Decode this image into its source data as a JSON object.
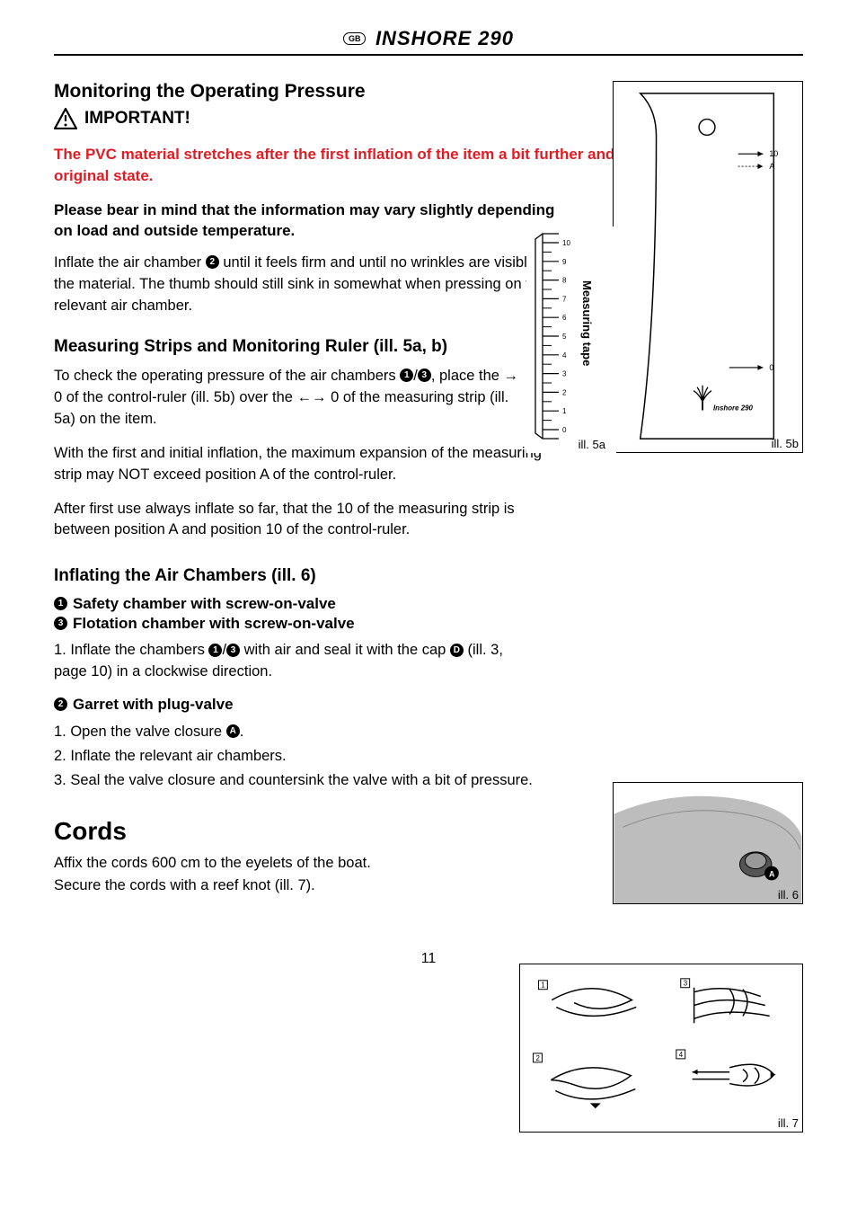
{
  "header": {
    "region_badge": "GB",
    "product": "INSHORE 290"
  },
  "s1": {
    "h": "Monitoring the Operating Pressure",
    "important": "IMPORTANT!",
    "red": "The PVC material stretches after the first inflation of the item a bit further and will not go back into its original state.",
    "bold": "Please bear in mind that the information may vary slightly depending on load and outside temperature.",
    "p1a": "Inflate the air chamber ",
    "p1b": " until it feels firm and until no wrinkles are visible in the material. The thumb should still sink in somewhat when pressing on the relevant air chamber."
  },
  "s2": {
    "h": "Measuring Strips and Monitoring Ruler (ill. 5a, b)",
    "p1a": "To check the operating pressure of the air chambers ",
    "p1b": ", place the → 0 of the control-ruler (ill. 5b) over the ←→ 0 of the measuring strip (ill. 5a) on the item.",
    "p2": "With the first and initial inflation, the maximum expansion of the measuring strip may NOT exceed position A of the control-ruler.",
    "p3": "After first use always inflate so far, that the 10 of the measuring strip is between position A and position 10 of the control-ruler."
  },
  "s3": {
    "h": "Inflating the Air Chambers (ill. 6)",
    "line1": "Safety chamber with screw-on-valve",
    "line2": "Flotation chamber with screw-on-valve",
    "step1a": "1. Inflate the chambers ",
    "step1b": " with air and seal it with the cap ",
    "step1c": " (ill. 3, page 10) in a clockwise direction.",
    "sub2": "Garret with plug-valve",
    "g1": "1. Open the valve closure ",
    "g1b": ".",
    "g2": "2. Inflate the relevant air chambers.",
    "g3": "3. Seal the valve closure and countersink the valve with a bit of pressure."
  },
  "s4": {
    "h": "Cords",
    "p1": "Affix the cords 600 cm to the eyelets of the boat.",
    "p2": "Secure the cords with a reef knot (ill. 7)."
  },
  "figs": {
    "ill5a": "ill. 5a",
    "ill5b": "ill. 5b",
    "ill6": "ill. 6",
    "ill7": "ill. 7",
    "measuring_tape": "Measuring tape",
    "ruler_ticks": [
      "0",
      "1",
      "2",
      "3",
      "4",
      "5",
      "6",
      "7",
      "8",
      "9",
      "10"
    ],
    "ctrl_0": "0",
    "ctrl_10": "10",
    "ctrl_A": "A",
    "inshore": "Inshore 290",
    "letter_A": "A",
    "knot_labels": [
      "1",
      "2",
      "3",
      "4"
    ]
  },
  "colors": {
    "red": "#e11b22",
    "black": "#000000",
    "grey": "#bdbdbd"
  },
  "page": "11"
}
